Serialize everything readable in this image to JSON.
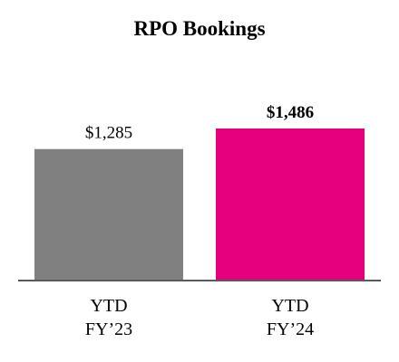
{
  "chart_data": {
    "type": "bar",
    "title": "RPO Bookings",
    "categories": [
      "YTD FY’23",
      "YTD FY’24"
    ],
    "values": [
      1285,
      1486
    ],
    "value_labels": [
      "$1,285",
      "$1,486"
    ],
    "colors": [
      "#808080",
      "#e6007e"
    ]
  }
}
